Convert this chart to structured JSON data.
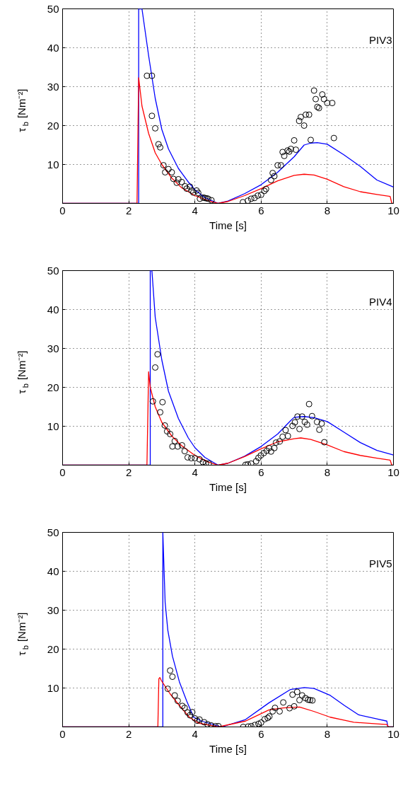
{
  "chart_data": [
    {
      "type": "line",
      "xlabel": "Time [s]",
      "ylabel": "τ$_{b}$ [Nm⁻²]",
      "annotations": [
        "PIV3"
      ],
      "xlim": [
        0,
        10
      ],
      "ylim": [
        0,
        50
      ],
      "xticks": [
        0,
        2,
        4,
        6,
        8,
        10
      ],
      "yticks": [
        10,
        20,
        30,
        40,
        50
      ],
      "grid": true,
      "series": [
        {
          "color": "#0000ff",
          "x": [
            0,
            2.3,
            2.3,
            2.4,
            2.6,
            2.8,
            3.0,
            3.2,
            3.5,
            3.8,
            4.0,
            4.3,
            4.7,
            5.0,
            5.5,
            6.0,
            6.5,
            7.0,
            7.3,
            7.5,
            7.7,
            8.0,
            8.5,
            9.0,
            9.5,
            10
          ],
          "values": [
            0,
            0,
            50,
            50,
            38,
            27,
            19,
            14,
            9,
            5.5,
            3.5,
            1.5,
            0,
            0.6,
            2.5,
            4.8,
            8,
            12,
            15,
            15.5,
            15.6,
            15.2,
            12.5,
            9.5,
            6,
            4.2
          ]
        },
        {
          "color": "#ff0000",
          "x": [
            0,
            2.25,
            2.3,
            2.4,
            2.6,
            2.8,
            3.0,
            3.3,
            3.6,
            4.0,
            4.4,
            4.7,
            5.0,
            5.5,
            6.0,
            6.5,
            7.0,
            7.3,
            7.6,
            8.0,
            8.5,
            9.0,
            9.5,
            9.9,
            9.95,
            10
          ],
          "values": [
            0,
            0,
            32.3,
            25,
            18,
            13,
            10,
            6.5,
            4,
            2,
            0.7,
            0,
            0.5,
            2,
            3.8,
            5.8,
            7.2,
            7.5,
            7.3,
            6.2,
            4.3,
            3.0,
            2.3,
            1.8,
            0,
            0
          ]
        },
        {
          "type": "scatter",
          "color": "#000000",
          "marker": "circle",
          "x": [
            2.55,
            2.7,
            2.7,
            2.8,
            2.9,
            2.95,
            3.05,
            3.1,
            3.2,
            3.3,
            3.35,
            3.45,
            3.5,
            3.6,
            3.7,
            3.75,
            3.85,
            3.9,
            3.95,
            4.05,
            4.1,
            4.15,
            4.25,
            4.3,
            4.35,
            4.4,
            4.5,
            5.45,
            5.6,
            5.7,
            5.8,
            5.9,
            6.0,
            6.1,
            6.15,
            6.3,
            6.35,
            6.4,
            6.5,
            6.6,
            6.65,
            6.7,
            6.8,
            6.85,
            6.9,
            7.0,
            7.05,
            7.15,
            7.2,
            7.3,
            7.35,
            7.45,
            7.5,
            7.6,
            7.65,
            7.7,
            7.75,
            7.85,
            7.9,
            8.0,
            8.15,
            8.2
          ],
          "values": [
            32.8,
            32.8,
            22.5,
            19.3,
            15.2,
            14.4,
            9.8,
            8.0,
            8.8,
            8.0,
            6.3,
            5.3,
            6.2,
            5.5,
            4.4,
            3.8,
            4.3,
            3.3,
            2.8,
            3.3,
            2.7,
            1.2,
            1.5,
            1.4,
            1.3,
            1.2,
            0.8,
            0.3,
            0.7,
            1.2,
            1.4,
            2.0,
            2.2,
            3.2,
            3.7,
            6.0,
            7.8,
            7.0,
            9.8,
            9.8,
            13.2,
            12.2,
            13.6,
            13.3,
            14.0,
            16.2,
            13.8,
            21.2,
            22.2,
            20.0,
            22.8,
            22.8,
            16.3,
            29.0,
            26.8,
            24.8,
            24.5,
            28.0,
            26.8,
            25.8,
            25.8,
            16.8
          ]
        }
      ]
    },
    {
      "type": "line",
      "xlabel": "Time [s]",
      "ylabel": "τ$_{b}$ [Nm⁻²]",
      "annotations": [
        "PIV4"
      ],
      "xlim": [
        0,
        10
      ],
      "ylim": [
        0,
        50
      ],
      "xticks": [
        0,
        2,
        4,
        6,
        8,
        10
      ],
      "yticks": [
        10,
        20,
        30,
        40,
        50
      ],
      "grid": true,
      "series": [
        {
          "color": "#0000ff",
          "x": [
            0,
            2.65,
            2.65,
            2.7,
            2.8,
            3.0,
            3.2,
            3.5,
            3.8,
            4.0,
            4.3,
            4.7,
            5.0,
            5.5,
            6.0,
            6.5,
            6.9,
            7.0,
            7.3,
            7.6,
            8.0,
            8.5,
            9.0,
            9.5,
            10
          ],
          "values": [
            0,
            0,
            50,
            50,
            38,
            27,
            19,
            12,
            7,
            4.5,
            2,
            0,
            0.5,
            2.3,
            4.8,
            8,
            11.5,
            12.3,
            12.5,
            12.2,
            11.2,
            8.5,
            5.8,
            3.8,
            2.6
          ]
        },
        {
          "color": "#ff0000",
          "x": [
            0,
            2.55,
            2.6,
            2.65,
            2.8,
            3.0,
            3.3,
            3.6,
            4.0,
            4.4,
            4.7,
            5.0,
            5.5,
            6.0,
            6.5,
            7.0,
            7.2,
            7.5,
            8.0,
            8.5,
            9.0,
            9.5,
            9.9,
            9.95,
            10
          ],
          "values": [
            0,
            0,
            24,
            20,
            15,
            11,
            7.5,
            5,
            2.5,
            0.8,
            0,
            0.5,
            2.2,
            4.2,
            6,
            6.8,
            7,
            6.6,
            5.2,
            3.5,
            2.5,
            1.8,
            1.3,
            0,
            0
          ]
        },
        {
          "type": "scatter",
          "color": "#000000",
          "marker": "circle",
          "x": [
            2.73,
            2.8,
            2.87,
            2.95,
            3.02,
            3.09,
            3.16,
            3.25,
            3.32,
            3.39,
            3.48,
            3.61,
            3.69,
            3.78,
            3.89,
            4.0,
            4.14,
            4.24,
            4.33,
            4.42,
            5.53,
            5.6,
            5.7,
            5.85,
            5.92,
            5.99,
            6.08,
            6.17,
            6.24,
            6.3,
            6.4,
            6.45,
            6.56,
            6.65,
            6.74,
            6.81,
            6.95,
            7.02,
            7.1,
            7.16,
            7.24,
            7.32,
            7.39,
            7.45,
            7.54,
            7.69,
            7.76,
            7.83,
            7.91
          ],
          "values": [
            16.4,
            25.1,
            28.5,
            13.6,
            16.2,
            10.2,
            8.7,
            8.0,
            4.8,
            6.2,
            4.8,
            5.1,
            3.6,
            2.0,
            1.8,
            1.8,
            1.5,
            0.8,
            0.5,
            0.4,
            0.1,
            0.2,
            0.4,
            1.0,
            1.9,
            2.5,
            3.1,
            3.7,
            4.4,
            3.5,
            4.4,
            5.8,
            6.1,
            7.3,
            9.0,
            7.5,
            10.1,
            11.0,
            12.5,
            9.3,
            12.5,
            11.1,
            10.4,
            15.7,
            12.6,
            11.1,
            9.1,
            10.7,
            5.9
          ]
        }
      ]
    },
    {
      "type": "line",
      "xlabel": "Time [s]",
      "ylabel": "τ$_{b}$ [Nm⁻²]",
      "annotations": [
        "PIV5"
      ],
      "xlim": [
        0,
        10
      ],
      "ylim": [
        0,
        50
      ],
      "xticks": [
        0,
        2,
        4,
        6,
        8,
        10
      ],
      "yticks": [
        10,
        20,
        30,
        40,
        50
      ],
      "grid": true,
      "series": [
        {
          "color": "#0000ff",
          "x": [
            0,
            3.03,
            3.03,
            3.1,
            3.18,
            3.32,
            3.53,
            3.75,
            3.96,
            4.2,
            4.81,
            5.53,
            6.24,
            6.88,
            7.31,
            7.6,
            8.09,
            8.52,
            8.95,
            9.8,
            9.83,
            10
          ],
          "values": [
            0,
            0,
            50,
            32,
            24.9,
            18.2,
            11.6,
            6.7,
            2.5,
            1.5,
            0,
            1.9,
            6.2,
            9.6,
            10.1,
            9.9,
            8.1,
            5.5,
            3.1,
            1.5,
            0,
            0
          ]
        },
        {
          "color": "#ff0000",
          "x": [
            0,
            2.88,
            2.91,
            2.94,
            2.98,
            3.25,
            3.53,
            3.83,
            4.1,
            4.71,
            5.53,
            6.24,
            6.67,
            7.16,
            7.59,
            8.09,
            8.8,
            9.8,
            9.85,
            10
          ],
          "values": [
            0,
            0,
            12.4,
            12.7,
            12.0,
            8.5,
            5.5,
            2.5,
            1.0,
            0,
            1.5,
            4.4,
            4.9,
            5.1,
            4.0,
            2.5,
            1.2,
            0.6,
            0,
            0
          ]
        },
        {
          "type": "scatter",
          "color": "#000000",
          "marker": "circle",
          "x": [
            3.18,
            3.25,
            3.32,
            3.39,
            3.48,
            3.62,
            3.69,
            3.78,
            3.85,
            3.92,
            4.0,
            4.07,
            4.14,
            4.28,
            4.38,
            4.49,
            4.62,
            4.71,
            5.46,
            5.61,
            5.7,
            5.81,
            5.92,
            6.0,
            6.11,
            6.2,
            6.25,
            6.35,
            6.42,
            6.56,
            6.67,
            6.86,
            6.95,
            7.0,
            7.09,
            7.16,
            7.24,
            7.34,
            7.42,
            7.48,
            7.55
          ],
          "values": [
            9.8,
            14.5,
            12.9,
            8.1,
            6.7,
            5.4,
            4.9,
            3.7,
            3.0,
            3.8,
            2.2,
            1.6,
            1.9,
            1.2,
            0.7,
            0.4,
            0.2,
            0.2,
            0,
            0.1,
            0.2,
            0.5,
            0.8,
            1.1,
            2.0,
            2.3,
            2.7,
            4.0,
            4.9,
            4.0,
            6.3,
            4.8,
            8.3,
            5.3,
            9.0,
            6.9,
            8.1,
            7.4,
            7.0,
            6.9,
            6.8
          ]
        }
      ]
    }
  ]
}
